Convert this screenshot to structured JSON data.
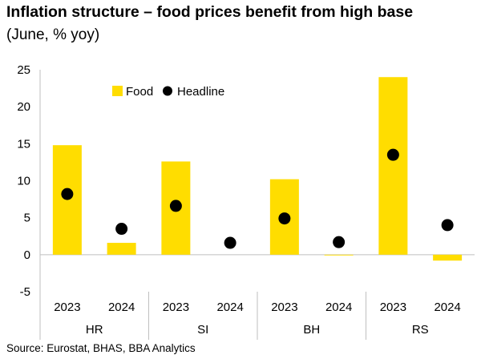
{
  "title": "Inflation structure – food prices benefit from high base",
  "subtitle": "(June, % yoy)",
  "source": "Source: Eurostat, BHAS, BBA Analytics",
  "colors": {
    "food": "#FFDD00",
    "headline": "#000000",
    "axis": "#BFBFBF"
  },
  "chart_data": {
    "type": "bar",
    "categories": [
      "2023",
      "2024",
      "2023",
      "2024",
      "2023",
      "2024",
      "2023",
      "2024"
    ],
    "groups": [
      {
        "label": "HR",
        "years": [
          "2023",
          "2024"
        ]
      },
      {
        "label": "SI",
        "years": [
          "2023",
          "2024"
        ]
      },
      {
        "label": "BH",
        "years": [
          "2023",
          "2024"
        ]
      },
      {
        "label": "RS",
        "years": [
          "2023",
          "2024"
        ]
      }
    ],
    "series": [
      {
        "name": "Food",
        "type": "bar",
        "values": [
          14.8,
          1.6,
          12.6,
          0.0,
          10.2,
          -0.1,
          24.0,
          -0.8
        ]
      },
      {
        "name": "Headline",
        "type": "scatter",
        "values": [
          8.2,
          3.5,
          6.6,
          1.6,
          4.9,
          1.7,
          13.5,
          4.0
        ]
      }
    ],
    "ylim": [
      -5,
      25
    ],
    "yticks": [
      "-5",
      "0",
      "5",
      "10",
      "15",
      "20",
      "25"
    ],
    "legend": "top-left",
    "grid": false
  }
}
